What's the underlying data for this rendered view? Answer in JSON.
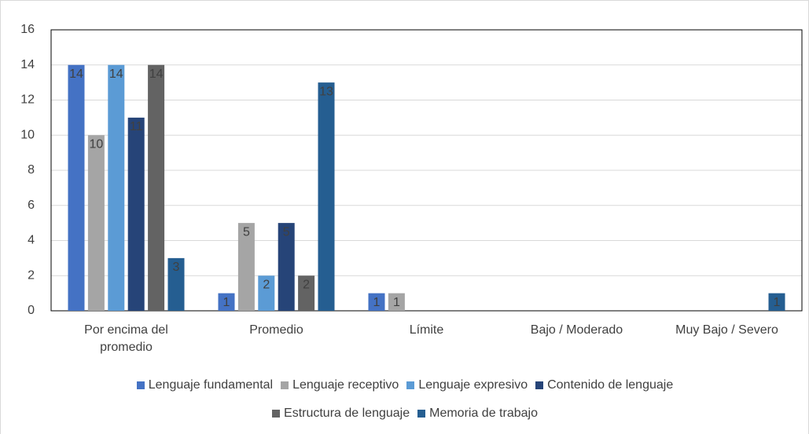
{
  "chart_data": {
    "type": "bar",
    "categories": [
      "Por encima del promedio",
      "Promedio",
      "Límite",
      "Bajo / Moderado",
      "Muy Bajo / Severo"
    ],
    "series": [
      {
        "name": "Lenguaje fundamental",
        "color": "#4472c4",
        "values": [
          14,
          1,
          1,
          0,
          0
        ]
      },
      {
        "name": "Lenguaje receptivo",
        "color": "#a5a5a5",
        "values": [
          10,
          5,
          1,
          0,
          0
        ]
      },
      {
        "name": "Lenguaje expresivo",
        "color": "#5b9bd5",
        "values": [
          14,
          2,
          0,
          0,
          0
        ]
      },
      {
        "name": "Contenido de lenguaje",
        "color": "#264478",
        "values": [
          11,
          5,
          0,
          0,
          0
        ]
      },
      {
        "name": "Estructura de lenguaje",
        "color": "#636363",
        "values": [
          14,
          2,
          0,
          0,
          0
        ]
      },
      {
        "name": "Memoria de trabajo",
        "color": "#255e91",
        "values": [
          3,
          13,
          0,
          0,
          1
        ]
      }
    ],
    "ylim": [
      0,
      16
    ],
    "yticks": [
      0,
      2,
      4,
      6,
      8,
      10,
      12,
      14,
      16
    ],
    "grid": true,
    "legend": "bottom"
  }
}
